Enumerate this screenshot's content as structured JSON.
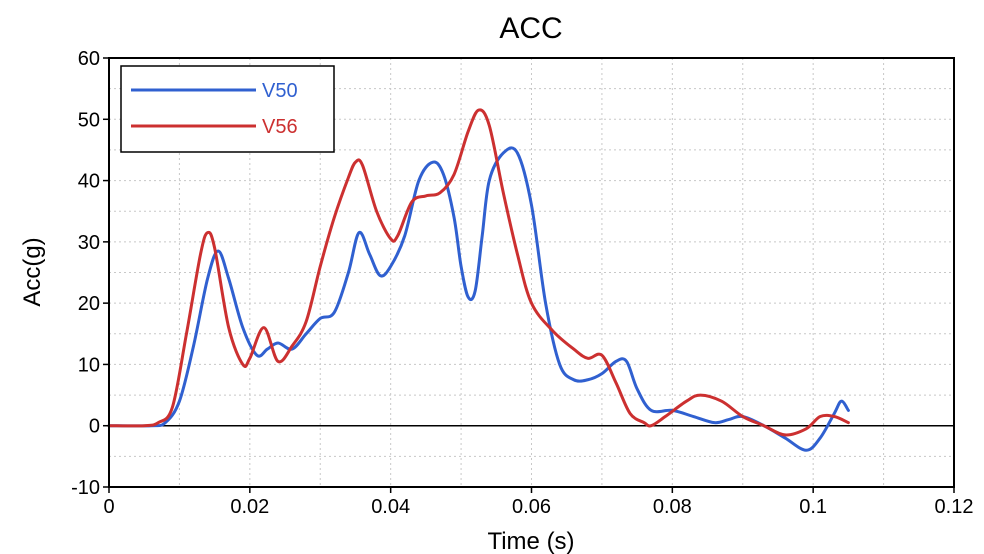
{
  "chart_data": {
    "type": "line",
    "title": "ACC",
    "xlabel": "Time (s)",
    "ylabel": "Acc(g)",
    "xlim": [
      0,
      0.12
    ],
    "ylim": [
      -10,
      60
    ],
    "x_ticks": [
      0,
      0.02,
      0.04,
      0.06,
      0.08,
      0.1,
      0.12
    ],
    "x_tick_labels": [
      "0",
      "0.02",
      "0.04",
      "0.06",
      "0.08",
      "0.1",
      "0.12"
    ],
    "y_ticks": [
      -10,
      0,
      10,
      20,
      30,
      40,
      50,
      60
    ],
    "y_tick_labels": [
      "-10",
      "0",
      "10",
      "20",
      "30",
      "40",
      "50",
      "60"
    ],
    "grid": true,
    "zero_line": true,
    "legend_position": "top-left",
    "series": [
      {
        "name": "V50",
        "color": "#3060d0",
        "x": [
          0,
          0.006,
          0.008,
          0.01,
          0.012,
          0.014,
          0.0155,
          0.017,
          0.019,
          0.021,
          0.0225,
          0.024,
          0.026,
          0.028,
          0.03,
          0.032,
          0.034,
          0.0355,
          0.037,
          0.0385,
          0.04,
          0.042,
          0.044,
          0.046,
          0.0475,
          0.049,
          0.05,
          0.051,
          0.052,
          0.053,
          0.054,
          0.056,
          0.058,
          0.06,
          0.062,
          0.064,
          0.066,
          0.068,
          0.07,
          0.072,
          0.0735,
          0.075,
          0.077,
          0.08,
          0.083,
          0.086,
          0.088,
          0.09,
          0.093,
          0.096,
          0.099,
          0.101,
          0.103,
          0.104,
          0.105
        ],
        "y": [
          0,
          0,
          0.5,
          4,
          13,
          24,
          28.5,
          24,
          16,
          11.5,
          12.5,
          13.5,
          12.5,
          15,
          17.5,
          18.5,
          25,
          31.5,
          28,
          24.5,
          26,
          31,
          40,
          43,
          41,
          34,
          26,
          21,
          22,
          31,
          40,
          44.5,
          44.5,
          36,
          20,
          10,
          7.5,
          7.5,
          8.5,
          10.5,
          10.5,
          6,
          2.5,
          2.5,
          1.5,
          0.5,
          1,
          1.5,
          0,
          -2,
          -4,
          -2,
          2,
          4,
          2.5
        ]
      },
      {
        "name": "V56",
        "color": "#cc3030",
        "x": [
          0,
          0.005,
          0.007,
          0.009,
          0.011,
          0.013,
          0.014,
          0.015,
          0.017,
          0.019,
          0.02,
          0.022,
          0.024,
          0.026,
          0.028,
          0.03,
          0.032,
          0.034,
          0.035,
          0.036,
          0.038,
          0.04,
          0.041,
          0.043,
          0.045,
          0.047,
          0.049,
          0.051,
          0.0525,
          0.054,
          0.056,
          0.058,
          0.06,
          0.063,
          0.066,
          0.068,
          0.07,
          0.072,
          0.074,
          0.076,
          0.077,
          0.079,
          0.082,
          0.084,
          0.087,
          0.09,
          0.093,
          0.096,
          0.099,
          0.101,
          0.103,
          0.105
        ],
        "y": [
          0,
          0,
          0.5,
          3,
          15,
          28,
          31.5,
          29,
          16,
          10,
          11,
          16,
          10.5,
          13,
          17,
          26,
          34,
          40.5,
          43,
          42.5,
          35,
          30.5,
          31,
          36.5,
          37.5,
          38,
          41,
          48,
          51.5,
          49,
          38,
          28,
          20,
          15.5,
          12.5,
          11,
          11.5,
          7,
          2,
          0.5,
          0,
          1.5,
          4,
          5,
          4,
          1.5,
          0,
          -1.5,
          -0.5,
          1.5,
          1.5,
          0.5
        ]
      }
    ]
  }
}
